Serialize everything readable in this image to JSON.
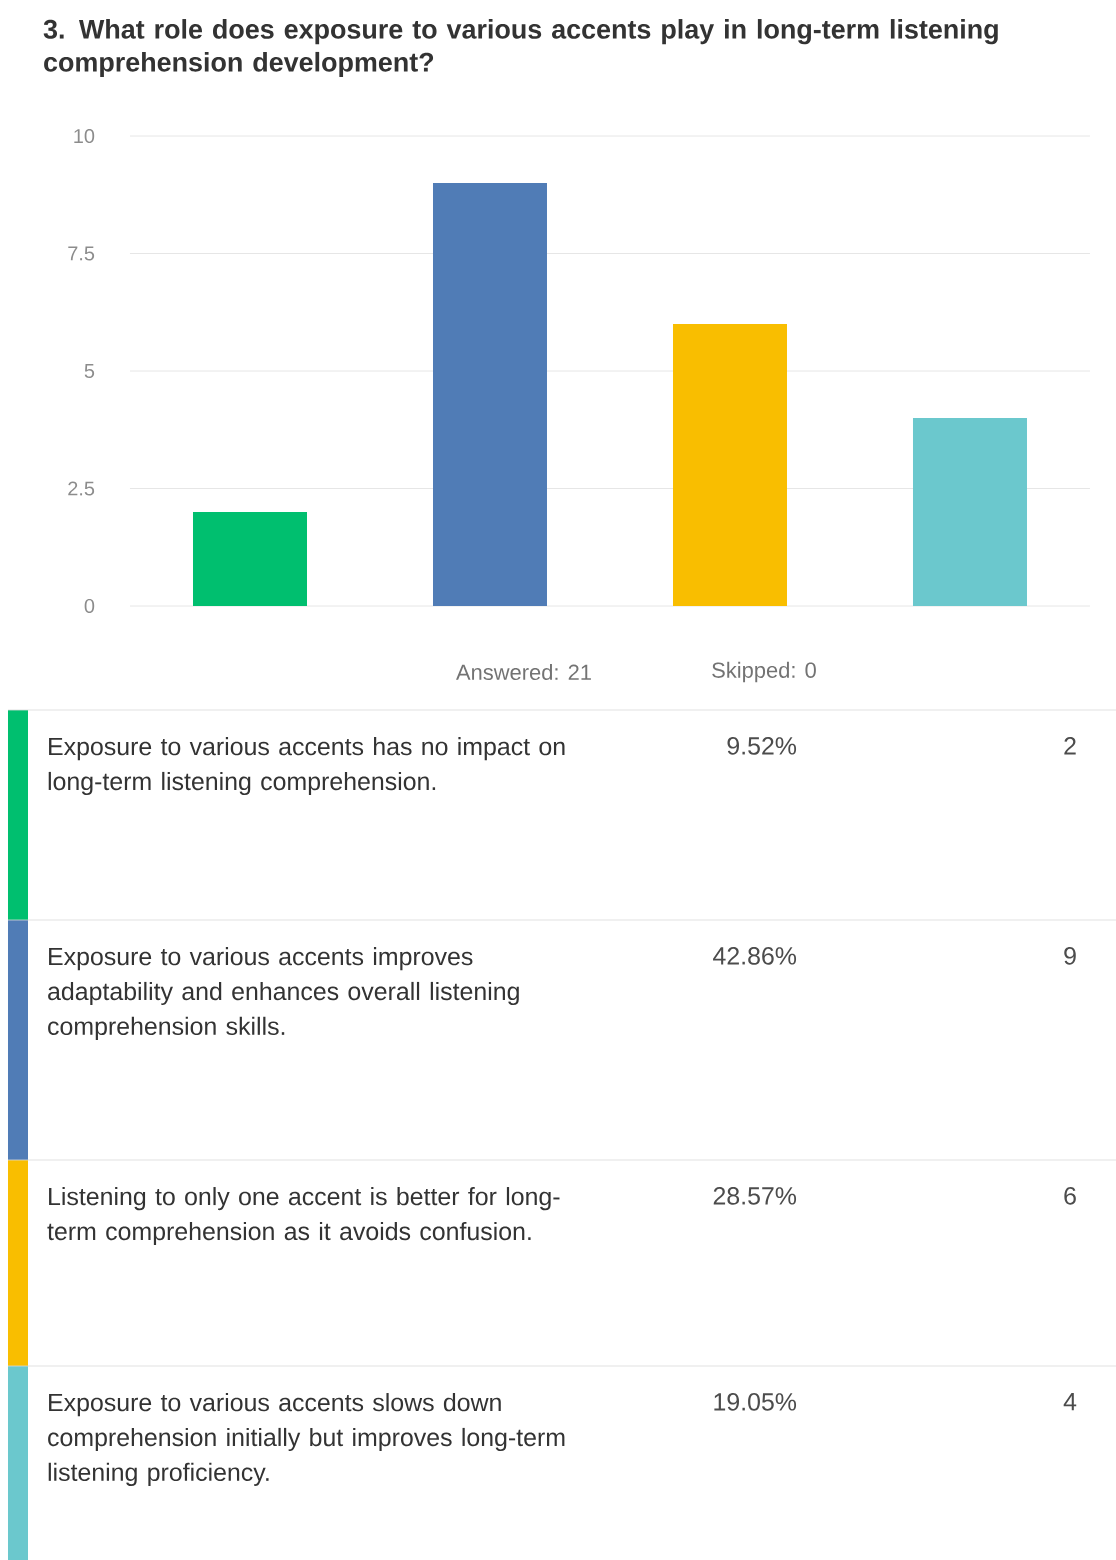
{
  "chart_data": {
    "type": "bar",
    "title": "3. What role does exposure to various accents play in long-term listening comprehension development?",
    "categories": [
      null,
      null,
      null,
      null
    ],
    "values": [
      2,
      9,
      6,
      4
    ],
    "colors": [
      "#00bf6f",
      "#507cb6",
      "#f9be00",
      "#6bc8cd"
    ],
    "ylim": [
      0,
      10
    ],
    "yticks": [
      0,
      2.5,
      5,
      7.5,
      10
    ],
    "grid": "y",
    "tick_labels": "y",
    "annotations": [
      "Answered: 21",
      "Skipped: 0",
      "Exposure to various accents has no impact on long-term listening comprehension.",
      "9.52%",
      "2",
      "Exposure to various accents improves adaptability and enhances overall listening comprehension skills.",
      "42.86%",
      "9",
      "Listening to only one accent is better for long-term comprehension as it avoids confusion.",
      "28.57%",
      "6",
      "Exposure to various accents slows down comprehension initially but improves long-term listening proficiency.",
      "19.05%",
      "4"
    ]
  }
}
